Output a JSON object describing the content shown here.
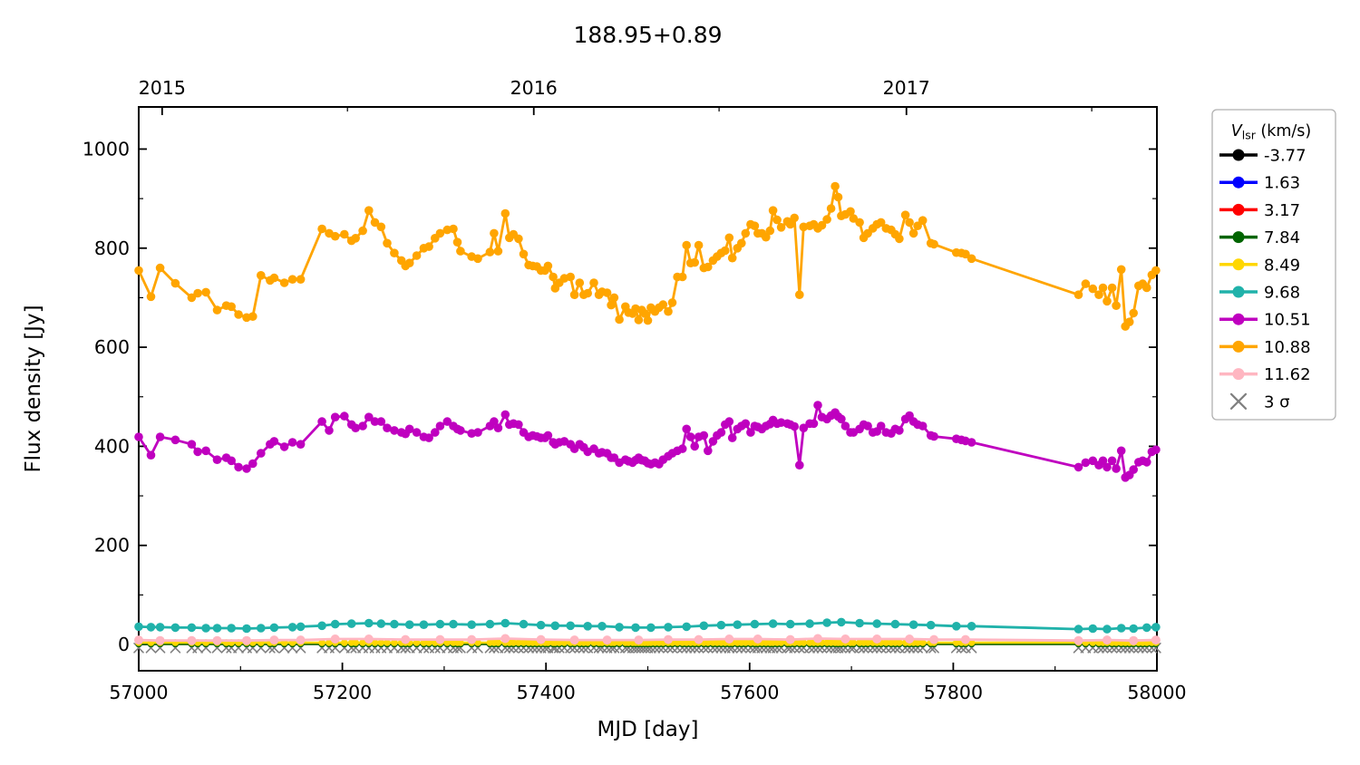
{
  "figure": {
    "title": "188.95+0.89"
  },
  "chart_data": {
    "type": "line",
    "title": "188.95+0.89",
    "xlabel": "MJD [day]",
    "ylabel": "Flux density [Jy]",
    "xlim": [
      57000,
      58000
    ],
    "ylim": [
      -53,
      1085
    ],
    "x_major_ticks": [
      57000,
      57200,
      57400,
      57600,
      57800,
      58000
    ],
    "x_minor_ticks": [
      57100,
      57300,
      57500,
      57700,
      57900
    ],
    "y_major_ticks": [
      0,
      200,
      400,
      600,
      800,
      1000
    ],
    "y_minor_ticks": [
      100,
      300,
      500,
      700,
      900
    ],
    "grid": false,
    "top_axis": {
      "major": [
        {
          "mjd": 57023,
          "label": "2015"
        },
        {
          "mjd": 57388,
          "label": "2016"
        },
        {
          "mjd": 57754,
          "label": "2017"
        }
      ],
      "minor": [
        57205,
        57570,
        57936
      ]
    },
    "legend": {
      "position": "outside-right",
      "title_var": "V",
      "title_sub": "lsr",
      "title_rest": " (km/s)"
    },
    "epochs": [
      57000,
      57012,
      57021,
      57036,
      57052,
      57058,
      57066,
      57077,
      57086,
      57091,
      57098,
      57106,
      57112,
      57120,
      57129,
      57133,
      57143,
      57151,
      57159,
      57180,
      57187,
      57193,
      57202,
      57209,
      57213,
      57220,
      57226,
      57232,
      57238,
      57244,
      57251,
      57258,
      57262,
      57266,
      57273,
      57280,
      57285,
      57291,
      57296,
      57303,
      57309,
      57313,
      57316,
      57327,
      57333,
      57345,
      57349,
      57353,
      57360,
      57364,
      57368,
      57373,
      57378,
      57383,
      57387,
      57391,
      57395,
      57399,
      57402,
      57407,
      57409,
      57413,
      57418,
      57424,
      57428,
      57433,
      57437,
      57441,
      57447,
      57452,
      57455,
      57460,
      57464,
      57467,
      57472,
      57478,
      57481,
      57485,
      57488,
      57491,
      57494,
      57497,
      57500,
      57503,
      57507,
      57511,
      57515,
      57520,
      57524,
      57529,
      57534,
      57538,
      57542,
      57546,
      57550,
      57555,
      57559,
      57564,
      57568,
      57572,
      57576,
      57580,
      57583,
      57588,
      57592,
      57596,
      57601,
      57605,
      57608,
      57612,
      57616,
      57620,
      57623,
      57627,
      57631,
      57637,
      57640,
      57644,
      57649,
      57653,
      57659,
      57663,
      57667,
      57671,
      57676,
      57680,
      57684,
      57687,
      57690,
      57694,
      57699,
      57702,
      57708,
      57712,
      57716,
      57721,
      57725,
      57729,
      57734,
      57739,
      57743,
      57747,
      57753,
      57757,
      57761,
      57765,
      57770,
      57778,
      57781,
      57803,
      57808,
      57812,
      57818,
      57923,
      57930,
      57937,
      57943,
      57947,
      57951,
      57956,
      57960,
      57965,
      57969,
      57973,
      57977,
      57982,
      57986,
      57990,
      57995,
      57999
    ],
    "series": [
      {
        "label": "-3.77",
        "color": "#000000",
        "y_const": 1.6,
        "line_width": 2.4,
        "marker": "none"
      },
      {
        "label": "1.63",
        "color": "#0000FF",
        "y_const": 1.3,
        "line_width": 2.2,
        "marker": "none"
      },
      {
        "label": "3.17",
        "color": "#FF0000",
        "y_const": 1.0,
        "line_width": 2.2,
        "marker": "none"
      },
      {
        "label": "7.84",
        "color": "#006400",
        "y_const": 0.7,
        "line_width": 2.2,
        "marker": "circle",
        "marker_r": 3.5
      },
      {
        "label": "8.49",
        "color": "#FFD700",
        "y_const": 3.8,
        "line_width": 2.6,
        "marker": "circle",
        "marker_r": 3.8
      },
      {
        "label": "9.68",
        "color": "#20B2AA",
        "line_width": 2.8,
        "marker": "circle",
        "marker_r": 4.8,
        "x": [
          57000,
          57012,
          57021,
          57036,
          57052,
          57066,
          57077,
          57091,
          57106,
          57120,
          57133,
          57151,
          57159,
          57180,
          57193,
          57209,
          57226,
          57238,
          57251,
          57266,
          57280,
          57296,
          57309,
          57327,
          57345,
          57360,
          57378,
          57395,
          57409,
          57424,
          57441,
          57455,
          57472,
          57488,
          57503,
          57520,
          57538,
          57555,
          57572,
          57588,
          57605,
          57623,
          57640,
          57659,
          57676,
          57690,
          57708,
          57725,
          57743,
          57761,
          57778,
          57803,
          57818,
          57923,
          57937,
          57951,
          57965,
          57977,
          57990,
          57999
        ],
        "y": [
          36,
          35,
          35,
          34,
          34,
          33,
          33,
          33,
          32,
          33,
          34,
          35,
          36,
          38,
          41,
          42,
          43,
          42,
          41,
          40,
          40,
          41,
          41,
          40,
          41,
          43,
          41,
          39,
          38,
          38,
          37,
          37,
          35,
          34,
          34,
          35,
          36,
          38,
          39,
          40,
          41,
          42,
          41,
          42,
          44,
          45,
          43,
          42,
          41,
          40,
          39,
          37,
          37,
          31,
          32,
          31,
          33,
          32,
          34,
          35
        ]
      },
      {
        "label": "10.51",
        "color": "#BF00BF",
        "line_width": 2.8,
        "marker": "circle",
        "marker_r": 4.8,
        "y": [
          419,
          382,
          419,
          413,
          404,
          389,
          391,
          373,
          377,
          371,
          358,
          355,
          365,
          386,
          404,
          410,
          399,
          408,
          404,
          450,
          432,
          459,
          461,
          444,
          437,
          441,
          459,
          450,
          450,
          437,
          432,
          428,
          425,
          435,
          428,
          419,
          417,
          428,
          441,
          450,
          441,
          435,
          432,
          426,
          428,
          441,
          450,
          437,
          464,
          444,
          446,
          444,
          428,
          419,
          422,
          420,
          417,
          417,
          422,
          408,
          404,
          408,
          410,
          404,
          395,
          404,
          398,
          389,
          395,
          386,
          388,
          386,
          377,
          377,
          367,
          373,
          370,
          367,
          372,
          377,
          372,
          371,
          366,
          364,
          367,
          364,
          373,
          380,
          386,
          391,
          395,
          435,
          419,
          400,
          419,
          422,
          391,
          410,
          422,
          428,
          444,
          450,
          417,
          435,
          441,
          446,
          428,
          441,
          439,
          435,
          441,
          445,
          453,
          446,
          448,
          446,
          444,
          440,
          362,
          437,
          446,
          446,
          483,
          459,
          455,
          462,
          468,
          460,
          455,
          441,
          428,
          428,
          435,
          444,
          441,
          428,
          430,
          441,
          428,
          426,
          435,
          432,
          455,
          462,
          450,
          444,
          441,
          422,
          420,
          415,
          413,
          411,
          408,
          358,
          367,
          371,
          362,
          371,
          358,
          371,
          355,
          391,
          337,
          342,
          353,
          368,
          371,
          368,
          389,
          393
        ]
      },
      {
        "label": "10.88",
        "color": "#FFA500",
        "line_width": 2.8,
        "marker": "circle",
        "marker_r": 4.8,
        "y": [
          755,
          702,
          760,
          729,
          700,
          709,
          711,
          675,
          684,
          682,
          666,
          660,
          662,
          745,
          735,
          740,
          730,
          737,
          737,
          839,
          830,
          824,
          828,
          815,
          820,
          835,
          876,
          852,
          843,
          810,
          790,
          775,
          764,
          770,
          785,
          800,
          803,
          820,
          830,
          837,
          839,
          812,
          794,
          783,
          779,
          792,
          830,
          794,
          870,
          821,
          828,
          819,
          788,
          766,
          764,
          763,
          755,
          755,
          764,
          742,
          719,
          730,
          739,
          742,
          706,
          730,
          706,
          709,
          730,
          706,
          712,
          710,
          685,
          700,
          656,
          682,
          670,
          668,
          678,
          655,
          675,
          668,
          654,
          680,
          672,
          680,
          686,
          672,
          690,
          742,
          742,
          806,
          770,
          771,
          806,
          760,
          762,
          775,
          783,
          790,
          795,
          821,
          780,
          800,
          810,
          830,
          848,
          845,
          830,
          830,
          822,
          835,
          876,
          857,
          842,
          854,
          848,
          861,
          706,
          843,
          845,
          848,
          840,
          846,
          858,
          880,
          925,
          903,
          865,
          868,
          874,
          860,
          852,
          821,
          830,
          840,
          848,
          852,
          840,
          837,
          828,
          819,
          867,
          852,
          830,
          845,
          856,
          810,
          808,
          791,
          790,
          788,
          779,
          706,
          728,
          718,
          706,
          720,
          693,
          720,
          684,
          757,
          642,
          651,
          669,
          724,
          728,
          720,
          746,
          755
        ]
      },
      {
        "label": "11.62",
        "color": "#FFB6C1",
        "line_width": 2.8,
        "marker": "circle",
        "marker_r": 5,
        "x": [
          57000,
          57021,
          57052,
          57077,
          57106,
          57133,
          57159,
          57193,
          57226,
          57262,
          57296,
          57327,
          57360,
          57395,
          57428,
          57460,
          57491,
          57520,
          57550,
          57580,
          57608,
          57640,
          57667,
          57694,
          57725,
          57757,
          57781,
          57812,
          57923,
          57951,
          57977,
          57999
        ],
        "y": [
          9,
          8,
          8,
          8,
          8,
          9,
          9,
          11,
          11,
          10,
          10,
          10,
          12,
          10,
          9,
          9,
          9,
          10,
          10,
          11,
          11,
          10,
          12,
          11,
          11,
          11,
          10,
          10,
          8,
          9,
          8,
          9
        ]
      },
      {
        "label": "3 σ",
        "color": "#808080",
        "y_const": -7,
        "line_width": 0,
        "marker": "x",
        "marker_r": 5
      }
    ]
  }
}
